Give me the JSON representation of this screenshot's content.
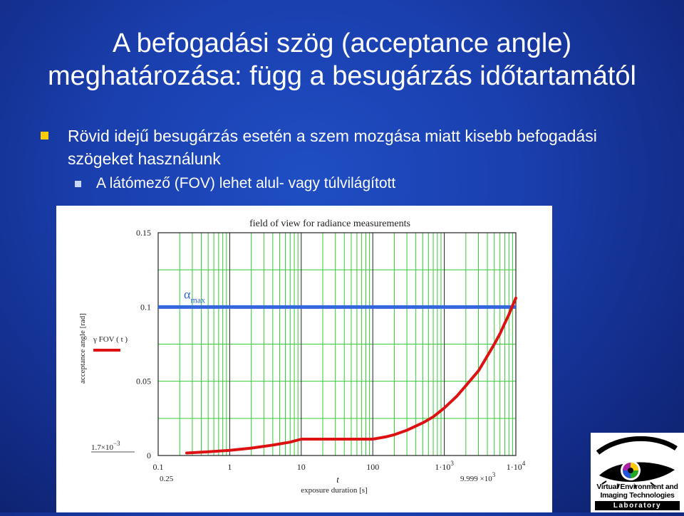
{
  "slide": {
    "title_line1": "A befogadási szög (acceptance angle)",
    "title_line2": "meghatározása: függ a besugárzás időtartamától",
    "bullet1": "Rövid idejű besugárzás esetén a szem mozgása miatt kisebb befogadási szögeket használunk",
    "bullet2": "A látómező (FOV) lehet alul- vagy túlvilágított",
    "colors": {
      "bullet1_marker": "#ffcc00",
      "bullet2_marker": "#c8d6ff"
    }
  },
  "chart_data": {
    "type": "line",
    "title": "field of view for radiance measurements",
    "xlabel": "exposure duration [s]",
    "x_var": "t",
    "ylabel": "acceptance angle [rad]",
    "x_scale": "log",
    "xlim": [
      0.1,
      10000
    ],
    "ylim": [
      0,
      0.15
    ],
    "x_ticks": [
      {
        "v": 0.1,
        "label": "0.1"
      },
      {
        "v": 1,
        "label": "1"
      },
      {
        "v": 10,
        "label": "10"
      },
      {
        "v": 100,
        "label": "100"
      },
      {
        "v": 1000,
        "label": "1·10",
        "sup": "3"
      },
      {
        "v": 10000,
        "label": "1·10",
        "sup": "4"
      }
    ],
    "x_range_labels": [
      {
        "label": "0.25",
        "side": "left"
      },
      {
        "label": "9.999 ×10",
        "sup": "3",
        "side": "right"
      }
    ],
    "y_ticks": [
      {
        "v": 0,
        "label": "0"
      },
      {
        "v": 0.05,
        "label": "0.05"
      },
      {
        "v": 0.1,
        "label": "0.1"
      },
      {
        "v": 0.15,
        "label": "0.15"
      }
    ],
    "y_range_label": {
      "label": "1.7×10",
      "sup": "−3"
    },
    "grid": true,
    "legend": {
      "placement": "left",
      "text": "γ FOV ( t )"
    },
    "series": [
      {
        "name": "γ FOV ( t )",
        "color": "#dd1111",
        "x": [
          0.25,
          0.5,
          1,
          2,
          4,
          7,
          10,
          20,
          50,
          100,
          150,
          200,
          300,
          500,
          700,
          1000,
          1500,
          2000,
          3000,
          4000,
          5000,
          6000,
          7000,
          8000,
          9000,
          9999
        ],
        "y": [
          0.0017,
          0.0025,
          0.0035,
          0.005,
          0.007,
          0.009,
          0.011,
          0.011,
          0.011,
          0.011,
          0.0125,
          0.014,
          0.017,
          0.022,
          0.026,
          0.032,
          0.04,
          0.047,
          0.057,
          0.067,
          0.075,
          0.082,
          0.089,
          0.095,
          0.101,
          0.106
        ]
      }
    ],
    "hline": {
      "label": "α",
      "sub": "max",
      "y": 0.1,
      "color": "#3366dd"
    }
  },
  "logo": {
    "line1": "Virtual Environment and",
    "line2": "Imaging Technologies",
    "line3": "Laboratory"
  }
}
